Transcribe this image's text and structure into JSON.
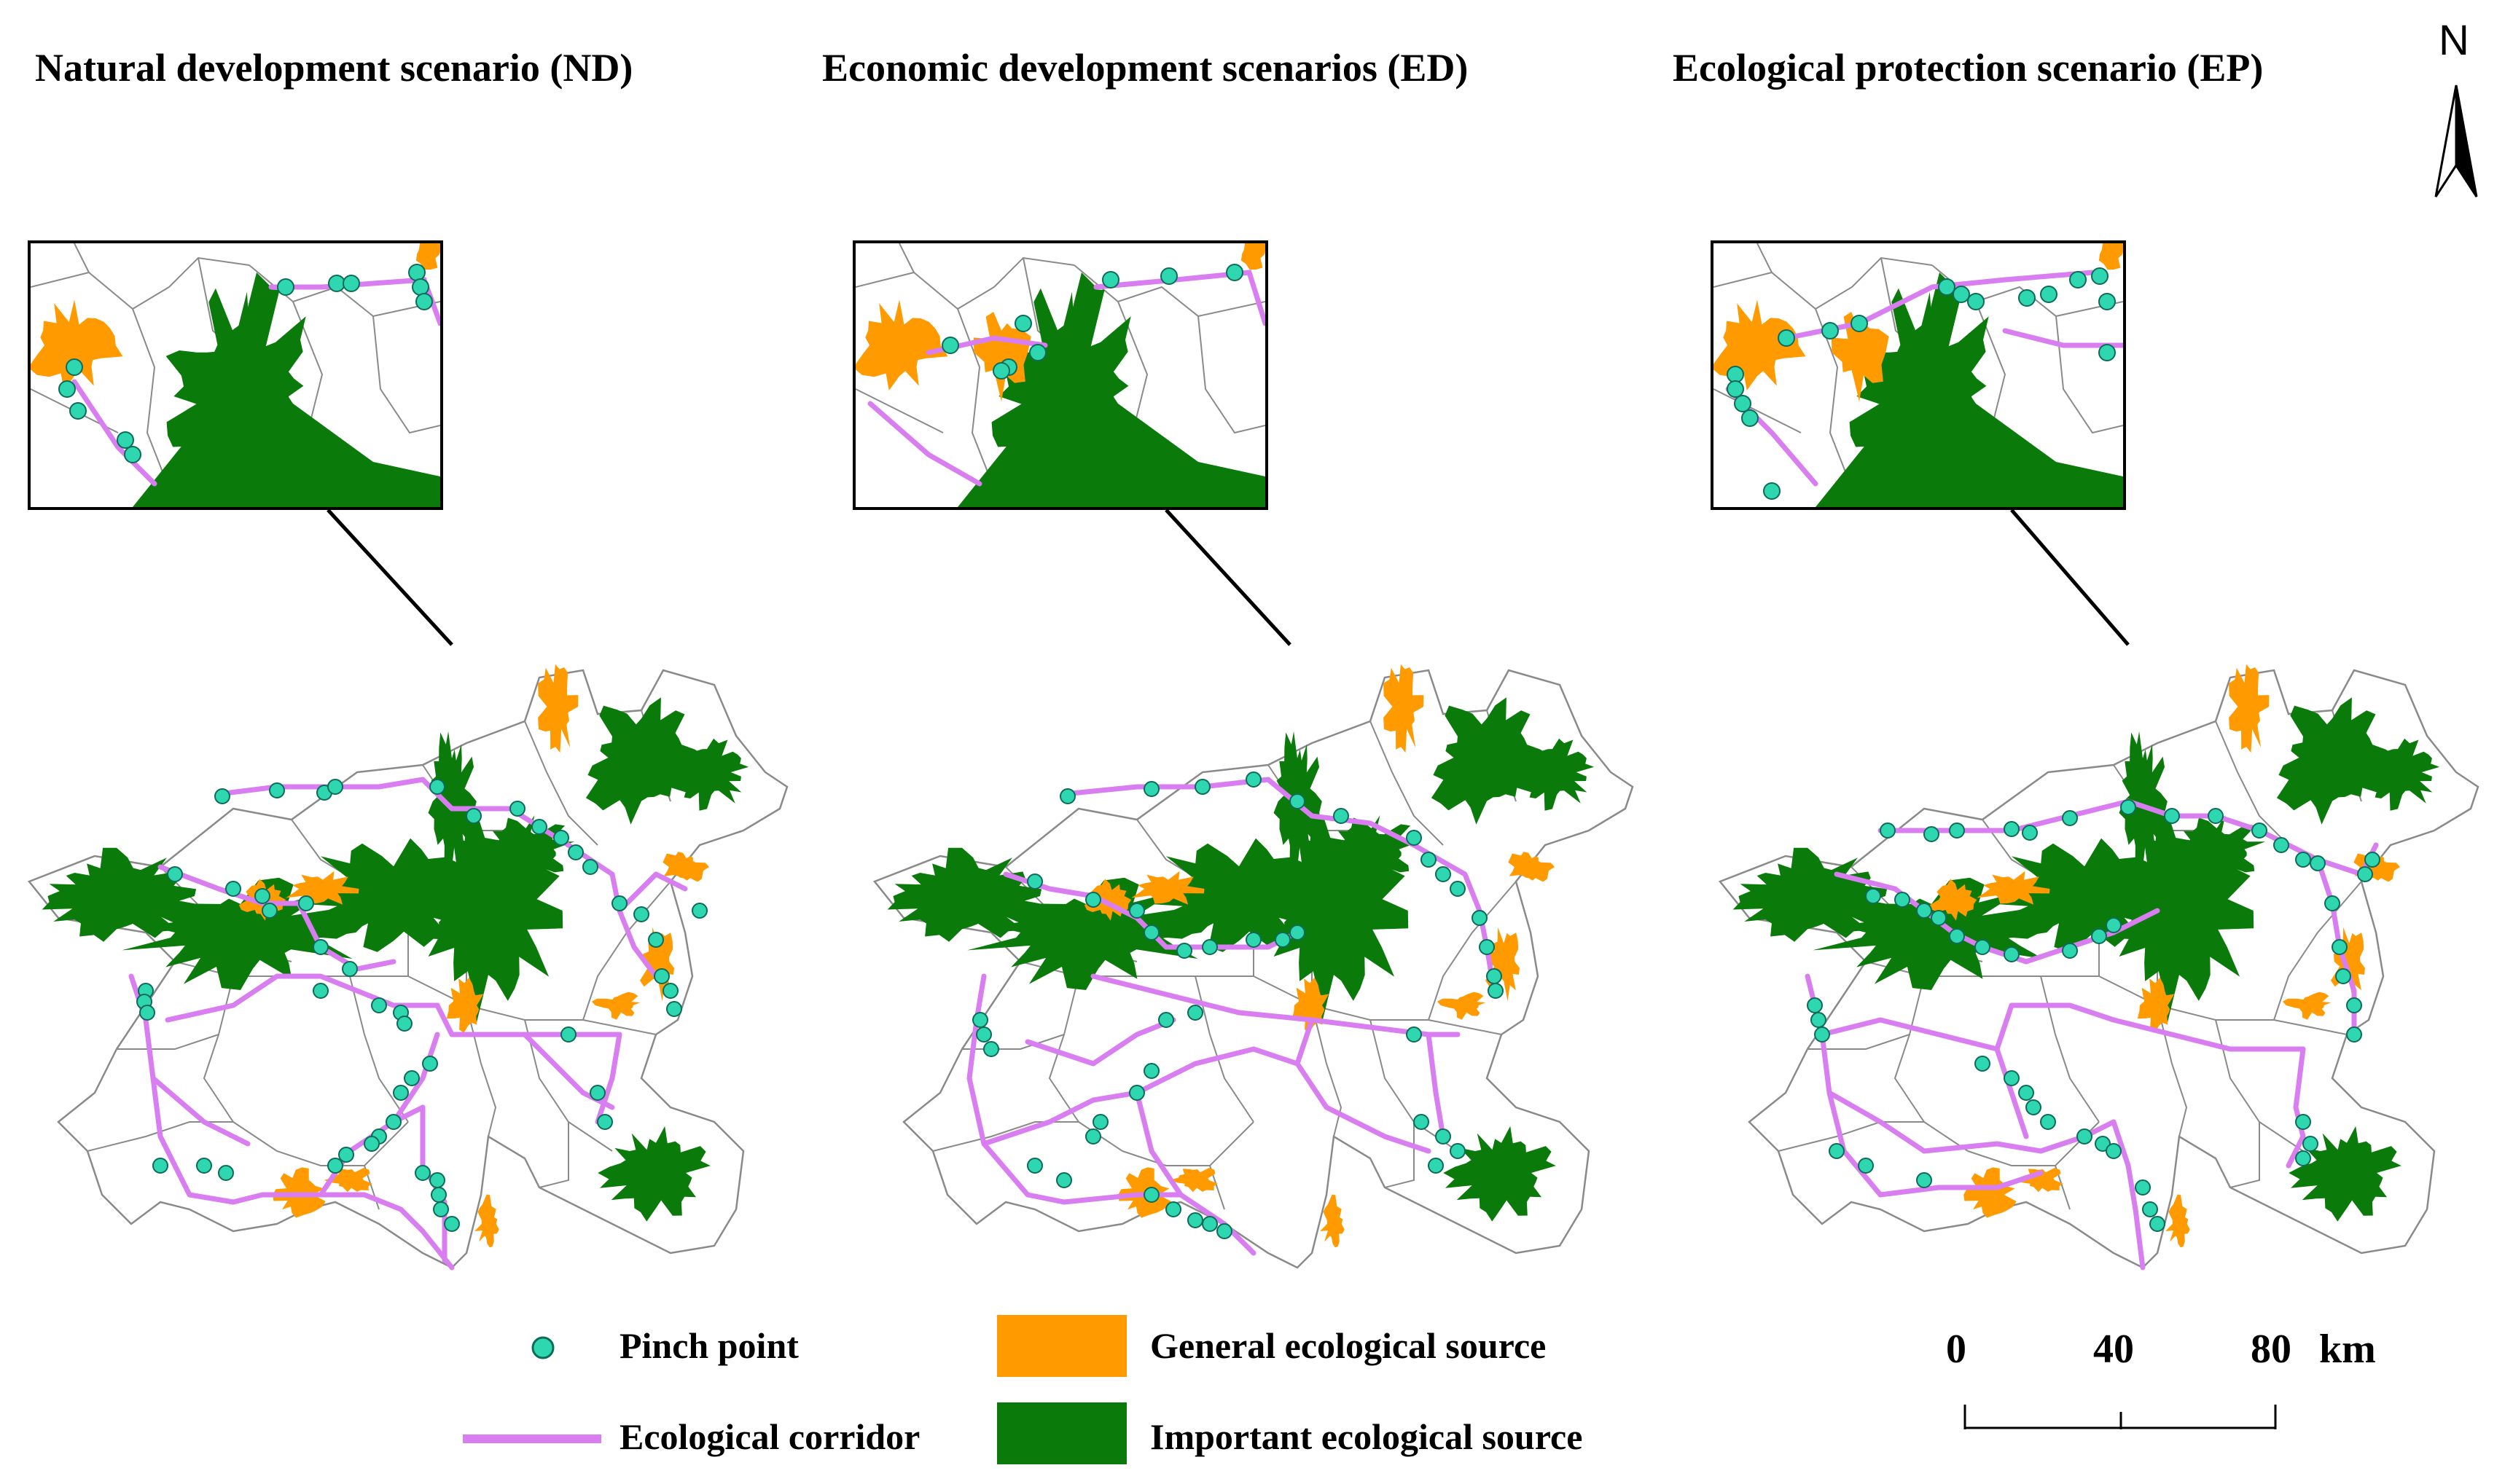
{
  "panels": [
    {
      "id": "nd",
      "title": "Natural development scenario (ND)"
    },
    {
      "id": "ed",
      "title": "Economic development scenarios (ED)"
    },
    {
      "id": "ep",
      "title": "Ecological protection scenario (EP)"
    }
  ],
  "north_arrow": {
    "label": "N"
  },
  "legend": {
    "pinch_point": "Pinch point",
    "ecological_corridor": "Ecological corridor",
    "general_source": "General  ecological source",
    "important_source": "Important ecological source"
  },
  "scale_bar": {
    "ticks": [
      "0",
      "40",
      "80"
    ],
    "unit": "km"
  },
  "colors": {
    "pinch_point": "#2ed7b0",
    "corridor": "#d97ef0",
    "general_source": "#ff9a00",
    "important_source": "#0a7a0a",
    "boundary": "#8a8a8a"
  }
}
